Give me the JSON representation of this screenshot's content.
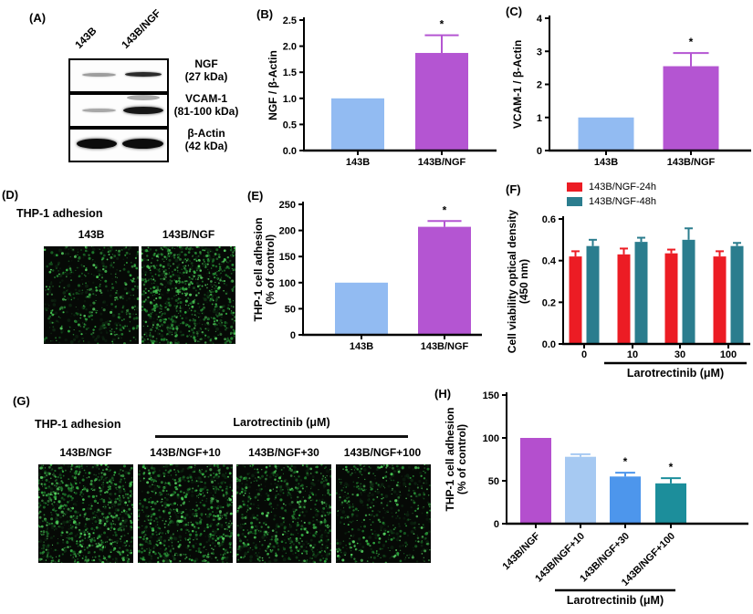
{
  "panels": {
    "A": {
      "label": "(A)",
      "lane_labels": [
        "143B",
        "143B/NGF"
      ],
      "rows": [
        {
          "protein": "NGF",
          "mw": "(27 kDa)"
        },
        {
          "protein": "VCAM-1",
          "mw": "(81-100 kDa)"
        },
        {
          "protein": "β-Actin",
          "mw": "(42 kDa)"
        }
      ]
    },
    "B": {
      "label": "(B)"
    },
    "C": {
      "label": "(C)"
    },
    "D": {
      "label": "(D)",
      "title": "THP-1 adhesion"
    },
    "E": {
      "label": "(E)"
    },
    "F": {
      "label": "(F)"
    },
    "G": {
      "label": "(G)",
      "title": "THP-1 adhesion",
      "treatment_label": "Larotrectinib (μM)"
    },
    "H": {
      "label": "(H)"
    }
  },
  "micrographs": {
    "D": {
      "images": [
        {
          "label": "143B",
          "density": 340
        },
        {
          "label": "143B/NGF",
          "density": 740
        }
      ]
    },
    "G": {
      "images": [
        {
          "label": "143B/NGF",
          "density": 740
        },
        {
          "label": "143B/NGF+10",
          "density": 610
        },
        {
          "label": "143B/NGF+30",
          "density": 500
        },
        {
          "label": "143B/NGF+100",
          "density": 350
        }
      ]
    }
  },
  "chart_data": [
    {
      "id": "B",
      "type": "bar",
      "ylabel_lines": [
        "NGF / β-Actin"
      ],
      "categories": [
        "143B",
        "143B/NGF"
      ],
      "values": [
        1.0,
        1.87
      ],
      "errors": [
        0,
        0.34
      ],
      "sig": [
        "",
        "*"
      ],
      "ylim": [
        0,
        2.5
      ],
      "yticks": [
        0,
        0.5,
        1.0,
        1.5,
        2.0,
        2.5
      ],
      "ydp": 1,
      "bar_colors": [
        "#92BBF2",
        "#B455D2"
      ]
    },
    {
      "id": "C",
      "type": "bar",
      "ylabel_lines": [
        "VCAM-1 / β-Actin"
      ],
      "categories": [
        "143B",
        "143B/NGF"
      ],
      "values": [
        1.0,
        2.55
      ],
      "errors": [
        0,
        0.4
      ],
      "sig": [
        "",
        "*"
      ],
      "ylim": [
        0,
        4
      ],
      "yticks": [
        0,
        1,
        2,
        3,
        4
      ],
      "ydp": 0,
      "bar_colors": [
        "#92BBF2",
        "#B455D2"
      ]
    },
    {
      "id": "E",
      "type": "bar",
      "ylabel_lines": [
        "THP-1 cell adhesion",
        "(% of control)"
      ],
      "categories": [
        "143B",
        "143B/NGF"
      ],
      "values": [
        100,
        207
      ],
      "errors": [
        0,
        11
      ],
      "sig": [
        "",
        "*"
      ],
      "ylim": [
        0,
        250
      ],
      "yticks": [
        0,
        50,
        100,
        150,
        200,
        250
      ],
      "ydp": 0,
      "bar_colors": [
        "#92BBF2",
        "#B455D2"
      ]
    },
    {
      "id": "F",
      "type": "grouped_bar",
      "ylabel_lines": [
        "Cell viability optical density",
        "(450 nm)"
      ],
      "categories": [
        "0",
        "10",
        "30",
        "100"
      ],
      "series": [
        {
          "name": "143B/NGF-24h",
          "color": "#EC1C24",
          "values": [
            0.42,
            0.43,
            0.435,
            0.42
          ],
          "errors": [
            0.025,
            0.028,
            0.018,
            0.025
          ]
        },
        {
          "name": "143B/NGF-48h",
          "color": "#2B7D8E",
          "values": [
            0.47,
            0.49,
            0.5,
            0.47
          ],
          "errors": [
            0.03,
            0.02,
            0.055,
            0.015
          ]
        }
      ],
      "ylim": [
        0,
        0.6
      ],
      "yticks": [
        0,
        0.2,
        0.4,
        0.6
      ],
      "ydp": 1,
      "group_label": "Larotrectinib (μM)",
      "legend_position": "top"
    },
    {
      "id": "H",
      "type": "bar",
      "ylabel_lines": [
        "THP-1 cell adhesion",
        "(% of control)"
      ],
      "categories": [
        "143B/NGF",
        "143B/NGF+10",
        "143B/NGF+30",
        "143B/NGF+100"
      ],
      "values": [
        100,
        78,
        55,
        47
      ],
      "errors": [
        0,
        3,
        4.5,
        6
      ],
      "sig": [
        "",
        "",
        "*",
        "*"
      ],
      "ylim": [
        0,
        150
      ],
      "yticks": [
        0,
        50,
        100,
        150
      ],
      "ydp": 0,
      "bar_colors": [
        "#B44FCE",
        "#A6C9F2",
        "#4D96EC",
        "#1C8E9B"
      ],
      "rot45": true,
      "group_label": "Larotrectinib (μM)"
    }
  ],
  "colors": {
    "light_blue": "#92BBF2",
    "purple": "#B455D2",
    "red": "#EC1C24",
    "teal": "#2B7D8E",
    "dot_green": "#2ea83e"
  }
}
